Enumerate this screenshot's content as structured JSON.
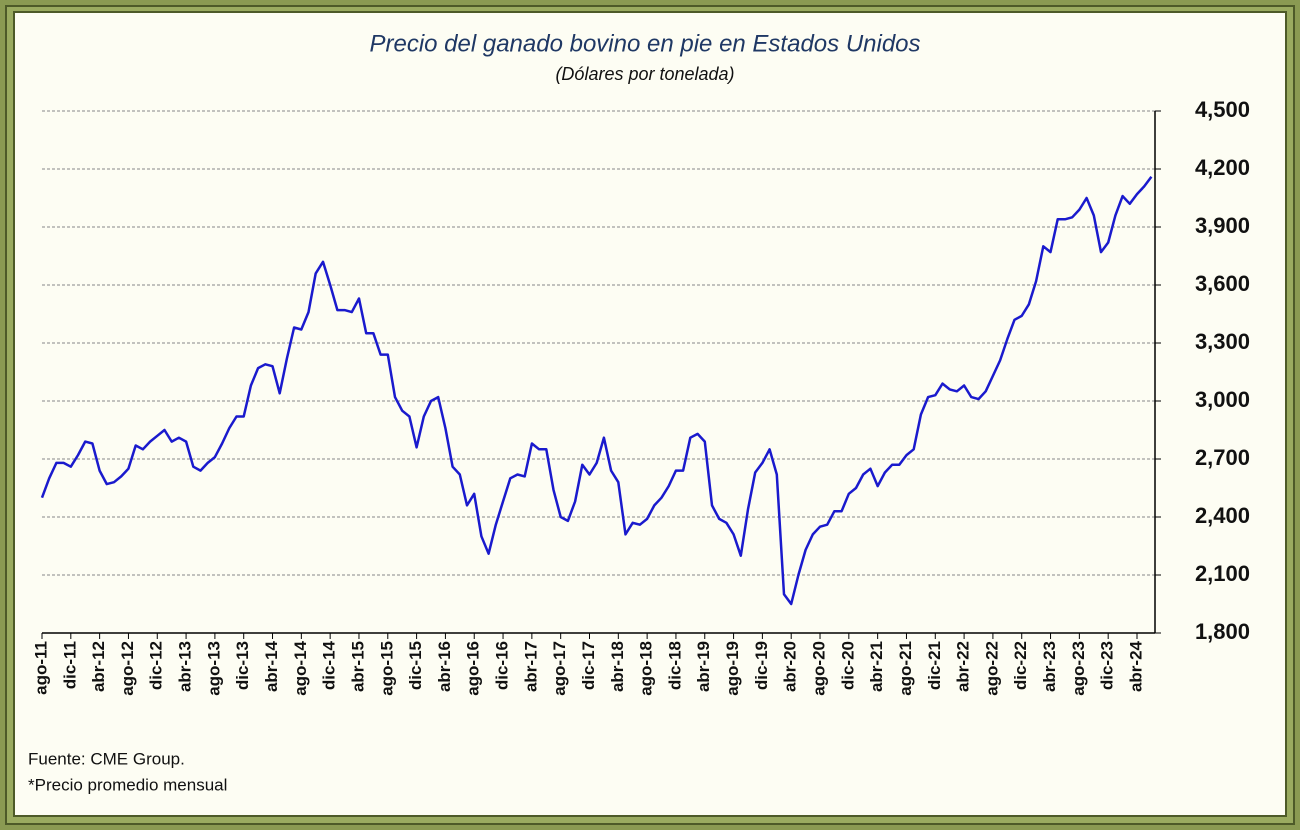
{
  "chart_data": {
    "type": "line",
    "title": "Precio del ganado bovino en pie en Estados Unidos",
    "subtitle": "(Dólares por tonelada)",
    "source": "Fuente: CME Group.",
    "note": "*Precio promedio mensual",
    "categories": [
      "ago-11",
      null,
      null,
      null,
      "dic-11",
      null,
      null,
      null,
      "abr-12",
      null,
      null,
      null,
      "ago-12",
      null,
      null,
      null,
      "dic-12",
      null,
      null,
      null,
      "abr-13",
      null,
      null,
      null,
      "ago-13",
      null,
      null,
      null,
      "dic-13",
      null,
      null,
      null,
      "abr-14",
      null,
      null,
      null,
      "ago-14",
      null,
      null,
      null,
      "dic-14",
      null,
      null,
      null,
      "abr-15",
      null,
      null,
      null,
      "ago-15",
      null,
      null,
      null,
      "dic-15",
      null,
      null,
      null,
      "abr-16",
      null,
      null,
      null,
      "ago-16",
      null,
      null,
      null,
      "dic-16",
      null,
      null,
      null,
      "abr-17",
      null,
      null,
      null,
      "ago-17",
      null,
      null,
      null,
      "dic-17",
      null,
      null,
      null,
      "abr-18",
      null,
      null,
      null,
      "ago-18",
      null,
      null,
      null,
      "dic-18",
      null,
      null,
      null,
      "abr-19",
      null,
      null,
      null,
      "ago-19",
      null,
      null,
      null,
      "dic-19",
      null,
      null,
      null,
      "abr-20",
      null,
      null,
      null,
      "ago-20",
      null,
      null,
      null,
      "dic-20",
      null,
      null,
      null,
      "abr-21",
      null,
      null,
      null,
      "ago-21",
      null,
      null,
      null,
      "dic-21",
      null,
      null,
      null,
      "abr-22",
      null,
      null,
      null,
      "ago-22",
      null,
      null,
      null,
      "dic-22",
      null,
      null,
      null,
      "abr-23",
      null,
      null,
      null,
      "ago-23",
      null,
      null,
      null,
      "dic-23",
      null,
      null,
      null,
      "abr-24",
      null,
      null
    ],
    "series": [
      {
        "name": "Precio",
        "color": "#1a1acd",
        "values": [
          2500,
          2600,
          2680,
          2680,
          2660,
          2720,
          2790,
          2780,
          2640,
          2570,
          2580,
          2610,
          2650,
          2770,
          2750,
          2790,
          2820,
          2850,
          2790,
          2810,
          2790,
          2660,
          2640,
          2680,
          2710,
          2780,
          2860,
          2920,
          2920,
          3080,
          3170,
          3190,
          3180,
          3040,
          3220,
          3380,
          3370,
          3460,
          3660,
          3720,
          3600,
          3470,
          3470,
          3460,
          3530,
          3350,
          3350,
          3240,
          3240,
          3020,
          2950,
          2920,
          2760,
          2920,
          3000,
          3020,
          2860,
          2660,
          2620,
          2460,
          2520,
          2300,
          2210,
          2360,
          2480,
          2600,
          2620,
          2610,
          2780,
          2750,
          2750,
          2540,
          2400,
          2380,
          2480,
          2670,
          2620,
          2680,
          2810,
          2640,
          2580,
          2310,
          2370,
          2360,
          2390,
          2460,
          2500,
          2560,
          2640,
          2640,
          2810,
          2830,
          2790,
          2460,
          2390,
          2370,
          2310,
          2200,
          2440,
          2630,
          2680,
          2750,
          2620,
          2000,
          1950,
          2100,
          2230,
          2310,
          2350,
          2360,
          2430,
          2430,
          2520,
          2550,
          2620,
          2650,
          2560,
          2630,
          2670,
          2670,
          2720,
          2750,
          2930,
          3020,
          3030,
          3090,
          3060,
          3050,
          3080,
          3020,
          3010,
          3050,
          3130,
          3210,
          3320,
          3420,
          3440,
          3500,
          3620,
          3800,
          3770,
          3940,
          3940,
          3950,
          3990,
          4050,
          3960,
          3770,
          3820,
          3960,
          4060,
          4020,
          4070,
          4110,
          4160
        ]
      }
    ],
    "ylim": [
      1800,
      4500
    ],
    "yticks": [
      {
        "value": 1800,
        "label": "1,800"
      },
      {
        "value": 2100,
        "label": "2,100"
      },
      {
        "value": 2400,
        "label": "2,400"
      },
      {
        "value": 2700,
        "label": "2,700"
      },
      {
        "value": 3000,
        "label": "3,000"
      },
      {
        "value": 3300,
        "label": "3,300"
      },
      {
        "value": 3600,
        "label": "3,600"
      },
      {
        "value": 3900,
        "label": "3,900"
      },
      {
        "value": 4200,
        "label": "4,200"
      },
      {
        "value": 4500,
        "label": "4,500"
      }
    ],
    "grid": true
  }
}
